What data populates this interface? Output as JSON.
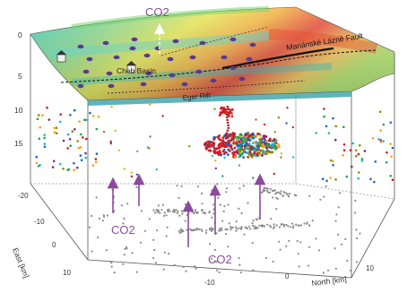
{
  "labels": {
    "co2": "CO2",
    "cheb_basin": "Cheb Basin",
    "fault": "Mariánské Lázně Fault",
    "eger_rift": "Eger Rift",
    "east_axis": "East [km]",
    "north_axis": "North [km]"
  },
  "depth_ticks": [
    "0",
    "5",
    "10",
    "15"
  ],
  "east_ticks": [
    "-20",
    "-10",
    "0",
    "10"
  ],
  "north_ticks": [
    "-10",
    "0",
    "10"
  ],
  "colors": {
    "co2_arrow": "#8b4a9e",
    "co2_text": "#8b4a9e",
    "vent_dot": "#5a3a8f",
    "grey_dots": "#8a8a8a",
    "fault_line": "#111111"
  },
  "seismicity_palette": [
    "#d7191c",
    "#1a66c8",
    "#1fa34a",
    "#f2a31a",
    "#1eb7c4",
    "#7a2a8a",
    "#8a8a00"
  ]
}
